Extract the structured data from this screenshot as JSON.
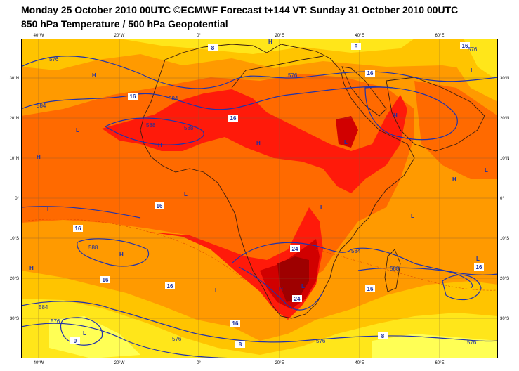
{
  "header": {
    "title_line1": "Monday 25 October 2010 00UTC ©ECMWF Forecast t+144 VT: Sunday 31 October 2010 00UTC",
    "title_line2": "850 hPa Temperature / 500 hPa Geopotential"
  },
  "map": {
    "lon_labels": [
      "40°W",
      "20°W",
      "0°",
      "20°E",
      "40°E",
      "60°E"
    ],
    "lat_labels": [
      "30°N",
      "20°N",
      "10°N",
      "0°",
      "10°S",
      "20°S",
      "30°S"
    ],
    "temperature_labels": [
      "8",
      "16",
      "16",
      "16",
      "16",
      "16",
      "16",
      "16",
      "24",
      "16",
      "16",
      "16",
      "16",
      "8",
      "8",
      "0",
      "24",
      "8"
    ],
    "geopotential_labels": [
      "576",
      "576",
      "584",
      "584",
      "588",
      "588",
      "588",
      "584",
      "588",
      "584",
      "576",
      "576",
      "576",
      "576",
      "576"
    ],
    "pressure_centers": [
      "H",
      "H",
      "L",
      "H",
      "L",
      "H",
      "H",
      "L",
      "H",
      "L",
      "L",
      "H",
      "L",
      "H",
      "L",
      "L",
      "H",
      "L",
      "L",
      "H",
      "L",
      "L"
    ],
    "colors": {
      "t0": "#ffff55",
      "t1": "#ffe61a",
      "t2": "#ffc400",
      "t3": "#ff9a00",
      "t4": "#ff6a00",
      "t5": "#ff1a0a",
      "t6": "#d10000",
      "t7": "#9e0000",
      "coast": "#3a1d10",
      "contour": "#2233aa"
    }
  }
}
